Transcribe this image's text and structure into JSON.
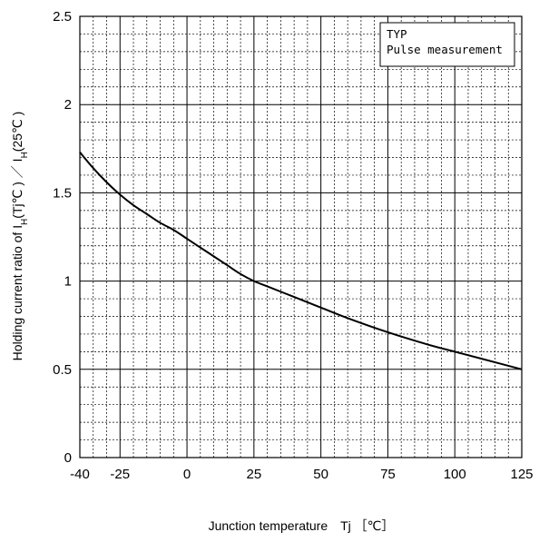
{
  "chart_data": {
    "type": "line",
    "title": "",
    "xlabel": "Junction temperature　Tj ［℃］",
    "ylabel": {
      "p1": "Holding current ratio  of  I",
      "s1": "H",
      "p2": "(Tj℃ ) ／ I",
      "s2": "H",
      "p3": "(25℃ )"
    },
    "xlim": [
      -40,
      125
    ],
    "ylim": [
      0,
      2.5
    ],
    "x_ticks": [
      -40,
      -25,
      0,
      25,
      50,
      75,
      100,
      125
    ],
    "x_tick_labels": [
      "-40",
      "-25",
      "0",
      "25",
      "50",
      "75",
      "100",
      "125"
    ],
    "y_ticks": [
      0,
      0.5,
      1,
      1.5,
      2,
      2.5
    ],
    "y_tick_labels": [
      "0",
      "0.5",
      "1",
      "1.5",
      "2",
      "2.5"
    ],
    "grid": true,
    "legend": {
      "placement": "top-right",
      "lines": [
        "TYP",
        "Pulse measurement"
      ]
    },
    "series": [
      {
        "x": [
          -40,
          -35,
          -30,
          -25,
          -20,
          -15,
          -10,
          -5,
          0,
          5,
          10,
          15,
          20,
          25,
          30,
          40,
          50,
          60,
          75,
          90,
          100,
          110,
          125
        ],
        "y": [
          1.73,
          1.64,
          1.56,
          1.49,
          1.43,
          1.38,
          1.33,
          1.29,
          1.24,
          1.19,
          1.14,
          1.09,
          1.04,
          1.0,
          0.97,
          0.91,
          0.85,
          0.79,
          0.71,
          0.64,
          0.6,
          0.56,
          0.5
        ]
      }
    ]
  }
}
